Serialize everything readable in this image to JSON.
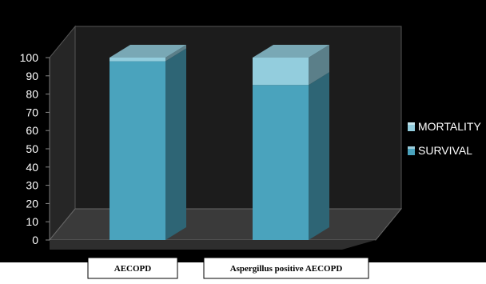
{
  "chart_data": {
    "type": "bar",
    "stacked": true,
    "three_d": true,
    "categories": [
      "AECOPD",
      "Aspergillus positive AECOPD"
    ],
    "series": [
      {
        "name": "SURVIVAL",
        "values": [
          98,
          85
        ],
        "color": "#4aa3bd"
      },
      {
        "name": "MORTALITY",
        "values": [
          2,
          15
        ],
        "color": "#93cddd"
      }
    ],
    "ylim": [
      0,
      100
    ],
    "yticks": [
      0,
      10,
      20,
      30,
      40,
      50,
      60,
      70,
      80,
      90,
      100
    ],
    "grid": false,
    "legend": {
      "position": "right",
      "order": [
        "MORTALITY",
        "SURVIVAL"
      ]
    },
    "colors": {
      "background": "#000000",
      "floor": "#3d3d3d",
      "back_wall": "#1e1e1e",
      "side_wall": "#262626"
    }
  }
}
